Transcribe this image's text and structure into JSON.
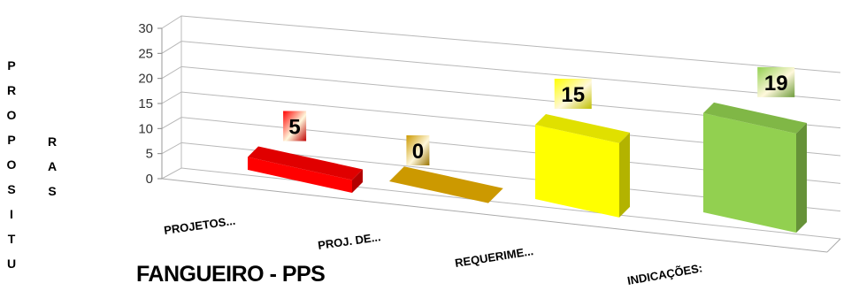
{
  "chart_data": {
    "type": "bar",
    "title": "FANGUEIRO - PPS",
    "ylabel_part1": "PROPOSITU",
    "ylabel_part2": "RAS",
    "categories": [
      "PROJETOS...",
      "PROJ. DE...",
      "REQUERIME...",
      "INDICAÇÕES:"
    ],
    "values": [
      5,
      0,
      15,
      19
    ],
    "value_labels": [
      "5",
      "0",
      "15",
      "19"
    ],
    "ylim": [
      0,
      30
    ],
    "yticks": [
      "0",
      "5",
      "10",
      "15",
      "20",
      "25",
      "30"
    ],
    "grid": true,
    "legend": "none",
    "style": "3d-perspective",
    "colors": [
      "#ff0000",
      "#cc9900",
      "#ffff00",
      "#92d050"
    ]
  }
}
